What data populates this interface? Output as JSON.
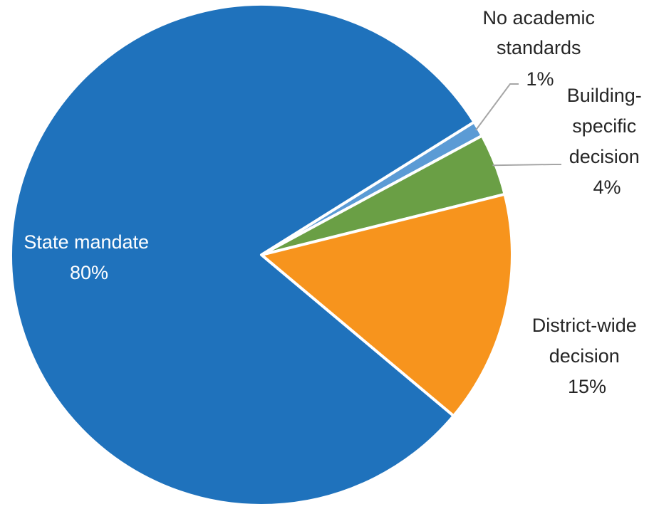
{
  "chart_data": {
    "type": "pie",
    "title": "",
    "slices": [
      {
        "label_lines": [
          "No academic",
          "standards"
        ],
        "percent_label": "1%",
        "value": 1,
        "color": "#5b9bd5"
      },
      {
        "label_lines": [
          "Building-",
          "specific",
          "decision"
        ],
        "percent_label": "4%",
        "value": 4,
        "color": "#6a9f45"
      },
      {
        "label_lines": [
          "District-wide",
          "decision"
        ],
        "percent_label": "15%",
        "value": 15,
        "color": "#f7941d"
      },
      {
        "label_lines": [
          "State mandate"
        ],
        "percent_label": "80%",
        "value": 80,
        "color": "#1f72bc"
      }
    ],
    "start_angle_deg": -32,
    "direction": "clockwise",
    "label_color_outside": "#262626",
    "label_color_inside": "#ffffff",
    "leader_line_color": "#a6a6a6"
  }
}
